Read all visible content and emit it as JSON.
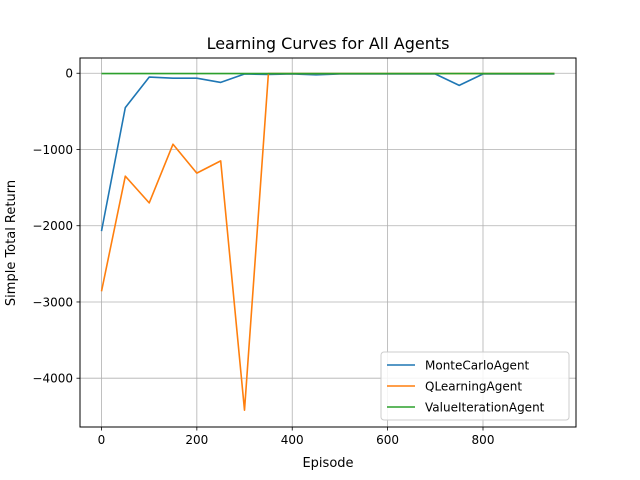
{
  "chart_data": {
    "type": "line",
    "title": "Learning Curves for All Agents",
    "xlabel": "Episode",
    "ylabel": "Simple Total Return",
    "xlim": [
      -45,
      995
    ],
    "ylim": [
      -4640,
      200
    ],
    "xticks": [
      0,
      200,
      400,
      600,
      800
    ],
    "xtick_labels": [
      "0",
      "200",
      "400",
      "600",
      "800"
    ],
    "yticks": [
      0,
      -1000,
      -2000,
      -3000,
      -4000
    ],
    "ytick_labels": [
      "0",
      "−1000",
      "−2000",
      "−3000",
      "−4000"
    ],
    "grid": true,
    "legend_position": "lower right",
    "series": [
      {
        "name": "MonteCarloAgent",
        "color": "#1f77b4",
        "x": [
          0,
          50,
          100,
          150,
          200,
          250,
          300,
          350,
          400,
          450,
          500,
          550,
          600,
          650,
          700,
          750,
          800,
          850,
          900,
          950
        ],
        "y": [
          -2070,
          -450,
          -50,
          -65,
          -65,
          -120,
          -10,
          -15,
          -10,
          -20,
          -10,
          -10,
          -10,
          -10,
          -10,
          -160,
          -10,
          -10,
          -10,
          -10
        ]
      },
      {
        "name": "QLearningAgent",
        "color": "#ff7f0e",
        "x": [
          0,
          50,
          100,
          150,
          200,
          250,
          300,
          350,
          400,
          450,
          500,
          550,
          600,
          650,
          700,
          750,
          800,
          850,
          900,
          950
        ],
        "y": [
          -2860,
          -1350,
          -1700,
          -930,
          -1310,
          -1150,
          -4420,
          -5,
          -5,
          -5,
          -5,
          -5,
          -5,
          -5,
          -5,
          -5,
          -5,
          -5,
          -5,
          -5
        ]
      },
      {
        "name": "ValueIterationAgent",
        "color": "#2ca02c",
        "x": [
          0,
          50,
          100,
          150,
          200,
          250,
          300,
          350,
          400,
          450,
          500,
          550,
          600,
          650,
          700,
          750,
          800,
          850,
          900,
          950
        ],
        "y": [
          -5,
          -5,
          -5,
          -5,
          -5,
          -5,
          -5,
          -5,
          -5,
          -5,
          -5,
          -5,
          -5,
          -5,
          -5,
          -5,
          -5,
          -5,
          -5,
          -5
        ]
      }
    ]
  }
}
